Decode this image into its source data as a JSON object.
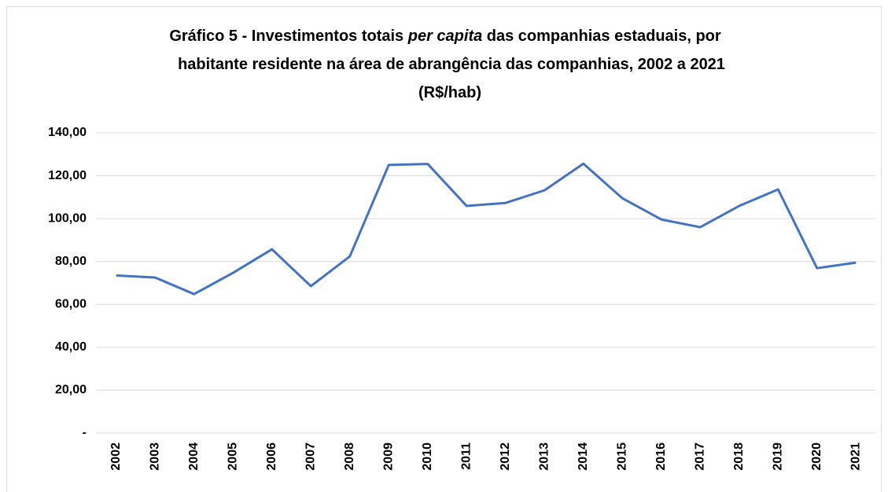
{
  "chart_data": {
    "type": "line",
    "title": [
      "Gráfico 5 - Investimentos totais ",
      "per capita",
      " das companhias estaduais, por",
      "habitante residente na área de abrangência das companhias, 2002 a 2021",
      "(R$/hab)"
    ],
    "categories": [
      "2002",
      "2003",
      "2004",
      "2005",
      "2006",
      "2007",
      "2008",
      "2009",
      "2010",
      "2011",
      "2012",
      "2013",
      "2014",
      "2015",
      "2016",
      "2017",
      "2018",
      "2019",
      "2020",
      "2021"
    ],
    "series": [
      {
        "color": "#4472c4",
        "values": [
          73.5,
          72.5,
          64.8,
          74.7,
          85.7,
          68.5,
          82.4,
          125.0,
          125.5,
          105.9,
          107.3,
          113.2,
          125.6,
          109.5,
          99.6,
          96.0,
          105.9,
          113.6,
          76.9,
          79.5
        ]
      }
    ],
    "ylim": [
      0,
      140
    ],
    "yticks": [
      {
        "value": 0,
        "label": "-"
      },
      {
        "value": 20,
        "label": "20,00"
      },
      {
        "value": 40,
        "label": "40,00"
      },
      {
        "value": 60,
        "label": "60,00"
      },
      {
        "value": 80,
        "label": "80,00"
      },
      {
        "value": 100,
        "label": "100,00"
      },
      {
        "value": 120,
        "label": "120,00"
      },
      {
        "value": 140,
        "label": "140,00"
      }
    ],
    "grid": true
  }
}
